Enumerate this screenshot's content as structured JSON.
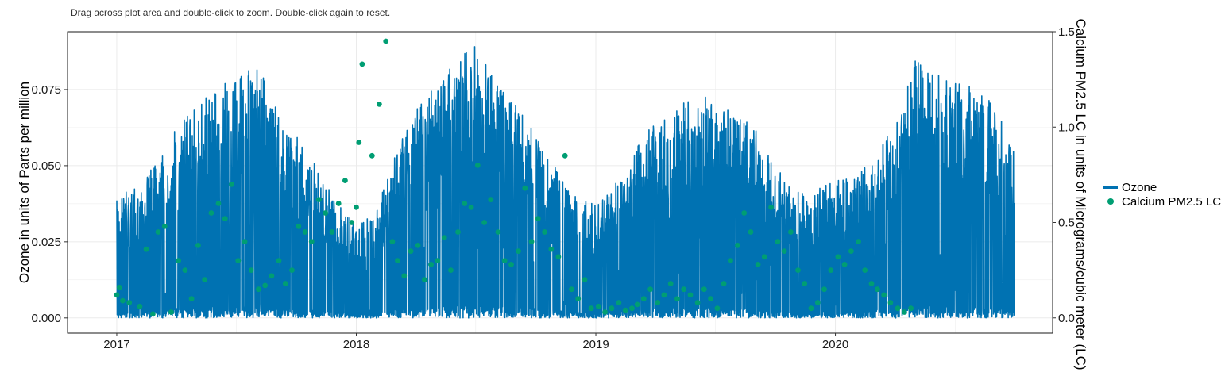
{
  "instruction_text": "Drag across plot area and double-click to zoom. Double-click again to reset.",
  "colors": {
    "ozone": "#0072B2",
    "calcium": "#009E73",
    "grid": "#EBEBEB",
    "border": "#1a1a1a"
  },
  "legend": {
    "items": [
      {
        "label": "Ozone",
        "kind": "line"
      },
      {
        "label": "Calcium PM2.5 LC",
        "kind": "point"
      }
    ]
  },
  "chart_data": {
    "type": "line+scatter",
    "xlabel": "",
    "ylabel_left": "Ozone  in units of Parts per million",
    "ylabel_right": "Calcium PM2.5 LC in units of Micrograms/cubic meter (LC)",
    "x_ticks": [
      "2017",
      "2018",
      "2019",
      "2020"
    ],
    "x_range": [
      "2016-10-18",
      "2020-11-27"
    ],
    "y_left_ticks": [
      "0.000",
      "0.025",
      "0.050",
      "0.075"
    ],
    "y_left_range": [
      -0.005,
      0.094
    ],
    "y_right_ticks": [
      "0.0",
      "0.5",
      "1.0",
      "1.5"
    ],
    "y_right_range": [
      -0.08,
      1.5
    ],
    "grid": true,
    "legend_position": "right",
    "series": [
      {
        "name": "Ozone",
        "axis": "left",
        "kind": "line",
        "description_range": [
          "2017-01-01",
          "2020-09-30"
        ],
        "daily_max_envelope": [
          [
            "2017-01-01",
            0.04
          ],
          [
            "2017-02-01",
            0.043
          ],
          [
            "2017-03-01",
            0.052
          ],
          [
            "2017-04-01",
            0.062
          ],
          [
            "2017-05-01",
            0.07
          ],
          [
            "2017-06-01",
            0.077
          ],
          [
            "2017-07-01",
            0.078
          ],
          [
            "2017-08-01",
            0.085
          ],
          [
            "2017-09-01",
            0.07
          ],
          [
            "2017-10-01",
            0.06
          ],
          [
            "2017-11-01",
            0.05
          ],
          [
            "2017-12-01",
            0.04
          ],
          [
            "2018-01-01",
            0.03
          ],
          [
            "2018-02-01",
            0.035
          ],
          [
            "2018-03-01",
            0.055
          ],
          [
            "2018-04-01",
            0.068
          ],
          [
            "2018-05-01",
            0.078
          ],
          [
            "2018-06-01",
            0.085
          ],
          [
            "2018-07-01",
            0.09
          ],
          [
            "2018-08-01",
            0.078
          ],
          [
            "2018-09-01",
            0.07
          ],
          [
            "2018-10-01",
            0.06
          ],
          [
            "2018-11-01",
            0.05
          ],
          [
            "2018-12-01",
            0.04
          ],
          [
            "2019-01-01",
            0.037
          ],
          [
            "2019-02-01",
            0.045
          ],
          [
            "2019-03-01",
            0.055
          ],
          [
            "2019-04-01",
            0.065
          ],
          [
            "2019-05-01",
            0.07
          ],
          [
            "2019-06-01",
            0.072
          ],
          [
            "2019-07-01",
            0.075
          ],
          [
            "2019-08-01",
            0.068
          ],
          [
            "2019-09-01",
            0.062
          ],
          [
            "2019-10-01",
            0.05
          ],
          [
            "2019-11-01",
            0.042
          ],
          [
            "2019-12-01",
            0.042
          ],
          [
            "2020-01-01",
            0.045
          ],
          [
            "2020-02-01",
            0.048
          ],
          [
            "2020-03-01",
            0.055
          ],
          [
            "2020-04-01",
            0.065
          ],
          [
            "2020-05-01",
            0.085
          ],
          [
            "2020-06-01",
            0.082
          ],
          [
            "2020-07-01",
            0.08
          ],
          [
            "2020-08-01",
            0.075
          ],
          [
            "2020-09-01",
            0.07
          ],
          [
            "2020-09-30",
            0.054
          ]
        ],
        "min": 0.0
      },
      {
        "name": "Calcium PM2.5 LC",
        "axis": "right",
        "kind": "point",
        "points": [
          [
            "2017-01-01",
            0.12
          ],
          [
            "2017-01-05",
            0.16
          ],
          [
            "2017-01-10",
            0.09
          ],
          [
            "2017-01-20",
            0.08
          ],
          [
            "2017-02-05",
            0.06
          ],
          [
            "2017-02-15",
            0.36
          ],
          [
            "2017-02-25",
            0.02
          ],
          [
            "2017-03-05",
            0.45
          ],
          [
            "2017-03-15",
            0.48
          ],
          [
            "2017-03-25",
            0.03
          ],
          [
            "2017-04-05",
            0.3
          ],
          [
            "2017-04-15",
            0.25
          ],
          [
            "2017-04-25",
            0.1
          ],
          [
            "2017-05-05",
            0.38
          ],
          [
            "2017-05-15",
            0.2
          ],
          [
            "2017-05-25",
            0.55
          ],
          [
            "2017-06-05",
            0.6
          ],
          [
            "2017-06-15",
            0.52
          ],
          [
            "2017-06-25",
            0.7
          ],
          [
            "2017-07-05",
            0.3
          ],
          [
            "2017-07-15",
            0.4
          ],
          [
            "2017-07-25",
            0.25
          ],
          [
            "2017-08-05",
            0.15
          ],
          [
            "2017-08-15",
            0.17
          ],
          [
            "2017-08-25",
            0.22
          ],
          [
            "2017-09-05",
            0.3
          ],
          [
            "2017-09-15",
            0.18
          ],
          [
            "2017-09-25",
            0.25
          ],
          [
            "2017-10-05",
            0.48
          ],
          [
            "2017-10-15",
            0.45
          ],
          [
            "2017-10-25",
            0.4
          ],
          [
            "2017-11-05",
            0.62
          ],
          [
            "2017-11-15",
            0.55
          ],
          [
            "2017-11-25",
            0.45
          ],
          [
            "2017-12-05",
            0.6
          ],
          [
            "2017-12-15",
            0.72
          ],
          [
            "2017-12-25",
            0.5
          ],
          [
            "2018-01-01",
            0.58
          ],
          [
            "2018-01-05",
            0.92
          ],
          [
            "2018-01-10",
            1.33
          ],
          [
            "2018-01-25",
            0.85
          ],
          [
            "2018-02-05",
            1.12
          ],
          [
            "2018-02-15",
            1.45
          ],
          [
            "2018-02-25",
            0.4
          ],
          [
            "2018-03-05",
            0.3
          ],
          [
            "2018-03-15",
            0.22
          ],
          [
            "2018-03-25",
            0.35
          ],
          [
            "2018-04-05",
            0.38
          ],
          [
            "2018-04-15",
            0.2
          ],
          [
            "2018-04-25",
            0.28
          ],
          [
            "2018-05-05",
            0.3
          ],
          [
            "2018-05-15",
            0.42
          ],
          [
            "2018-05-25",
            0.25
          ],
          [
            "2018-06-05",
            0.45
          ],
          [
            "2018-06-15",
            0.6
          ],
          [
            "2018-06-25",
            0.58
          ],
          [
            "2018-07-05",
            0.8
          ],
          [
            "2018-07-15",
            0.5
          ],
          [
            "2018-07-25",
            0.62
          ],
          [
            "2018-08-05",
            0.45
          ],
          [
            "2018-08-15",
            0.3
          ],
          [
            "2018-08-25",
            0.28
          ],
          [
            "2018-09-05",
            0.35
          ],
          [
            "2018-09-15",
            0.68
          ],
          [
            "2018-09-25",
            0.4
          ],
          [
            "2018-10-05",
            0.52
          ],
          [
            "2018-10-15",
            0.45
          ],
          [
            "2018-10-25",
            0.36
          ],
          [
            "2018-11-05",
            0.32
          ],
          [
            "2018-11-15",
            0.85
          ],
          [
            "2018-11-25",
            0.15
          ],
          [
            "2018-12-05",
            0.1
          ],
          [
            "2018-12-15",
            0.2
          ],
          [
            "2018-12-25",
            0.05
          ],
          [
            "2019-01-05",
            0.06
          ],
          [
            "2019-01-15",
            0.03
          ],
          [
            "2019-01-25",
            0.05
          ],
          [
            "2019-02-05",
            0.08
          ],
          [
            "2019-02-15",
            0.04
          ],
          [
            "2019-02-25",
            0.05
          ],
          [
            "2019-03-05",
            0.07
          ],
          [
            "2019-03-15",
            0.1
          ],
          [
            "2019-03-25",
            0.15
          ],
          [
            "2019-04-05",
            0.08
          ],
          [
            "2019-04-15",
            0.12
          ],
          [
            "2019-04-25",
            0.18
          ],
          [
            "2019-05-05",
            0.1
          ],
          [
            "2019-05-15",
            0.15
          ],
          [
            "2019-05-25",
            0.12
          ],
          [
            "2019-06-05",
            0.08
          ],
          [
            "2019-06-15",
            0.15
          ],
          [
            "2019-06-25",
            0.1
          ],
          [
            "2019-07-05",
            0.05
          ],
          [
            "2019-07-15",
            0.18
          ],
          [
            "2019-07-25",
            0.3
          ],
          [
            "2019-08-05",
            0.38
          ],
          [
            "2019-08-15",
            0.55
          ],
          [
            "2019-08-25",
            0.45
          ],
          [
            "2019-09-05",
            0.28
          ],
          [
            "2019-09-15",
            0.32
          ],
          [
            "2019-09-25",
            0.58
          ],
          [
            "2019-10-05",
            0.4
          ],
          [
            "2019-10-15",
            0.35
          ],
          [
            "2019-10-25",
            0.45
          ],
          [
            "2019-11-05",
            0.25
          ],
          [
            "2019-11-15",
            0.18
          ],
          [
            "2019-11-25",
            0.05
          ],
          [
            "2019-12-05",
            0.08
          ],
          [
            "2019-12-15",
            0.15
          ],
          [
            "2019-12-25",
            0.25
          ],
          [
            "2020-01-05",
            0.32
          ],
          [
            "2020-01-15",
            0.28
          ],
          [
            "2020-01-25",
            0.35
          ],
          [
            "2020-02-05",
            0.4
          ],
          [
            "2020-02-15",
            0.25
          ],
          [
            "2020-02-25",
            0.18
          ],
          [
            "2020-03-05",
            0.15
          ],
          [
            "2020-03-15",
            0.12
          ],
          [
            "2020-03-25",
            0.08
          ],
          [
            "2020-04-05",
            0.05
          ],
          [
            "2020-04-15",
            0.03
          ],
          [
            "2020-04-25",
            0.05
          ]
        ]
      }
    ]
  }
}
